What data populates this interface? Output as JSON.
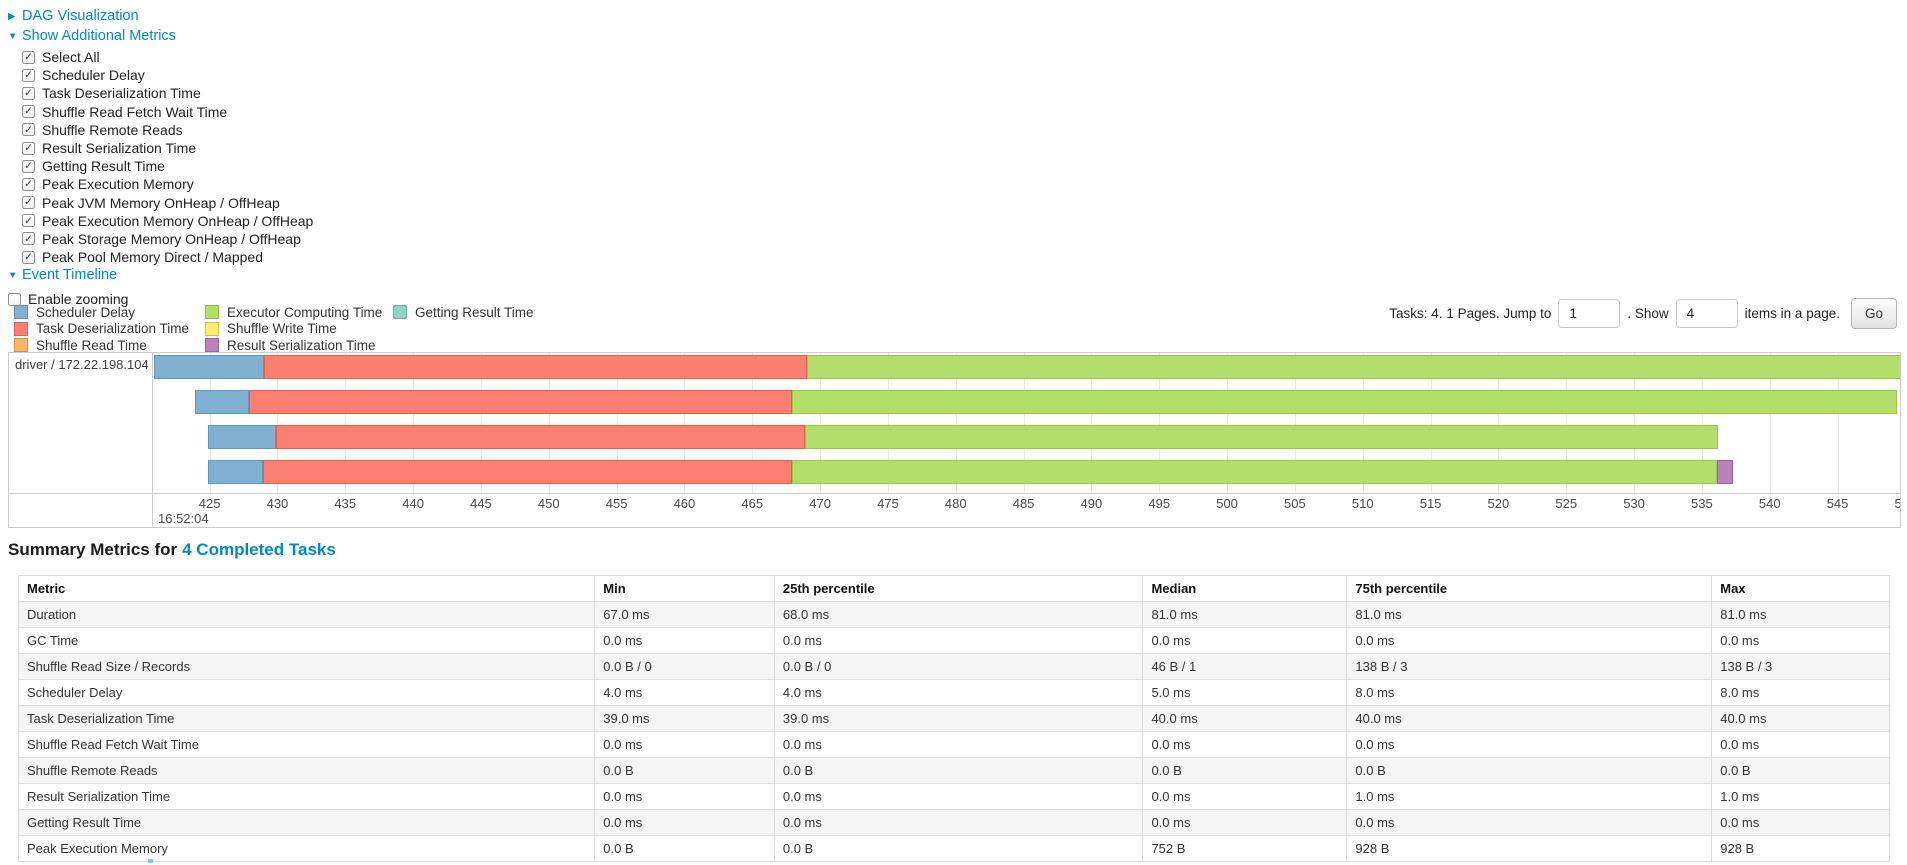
{
  "colors": {
    "link": "#0088cc",
    "grid": "#e9e9e9",
    "table_stripe": "#f5f5f5"
  },
  "controls": {
    "dag_label": "DAG Visualization",
    "metrics_label": "Show Additional Metrics",
    "metrics_checkboxes": [
      {
        "label": "Select All",
        "checked": true
      },
      {
        "label": "Scheduler Delay",
        "checked": true
      },
      {
        "label": "Task Deserialization Time",
        "checked": true
      },
      {
        "label": "Shuffle Read Fetch Wait Time",
        "checked": true
      },
      {
        "label": "Shuffle Remote Reads",
        "checked": true
      },
      {
        "label": "Result Serialization Time",
        "checked": true
      },
      {
        "label": "Getting Result Time",
        "checked": true
      },
      {
        "label": "Peak Execution Memory",
        "checked": true
      },
      {
        "label": "Peak JVM Memory OnHeap / OffHeap",
        "checked": true
      },
      {
        "label": "Peak Execution Memory OnHeap / OffHeap",
        "checked": true
      },
      {
        "label": "Peak Storage Memory OnHeap / OffHeap",
        "checked": true
      },
      {
        "label": "Peak Pool Memory Direct / Mapped",
        "checked": true
      }
    ],
    "event_timeline_label": "Event Timeline",
    "enable_zooming": {
      "label": "Enable zooming",
      "checked": false
    }
  },
  "pagination": {
    "prefix": "Tasks: 4. 1 Pages. Jump to",
    "jump_value": "1",
    "mid": ". Show",
    "show_value": "4",
    "suffix": "items in a page.",
    "go_label": "Go"
  },
  "chart_data": {
    "type": "timeline",
    "title": "Event Timeline",
    "group_label": "driver / 172.22.198.104",
    "x_axis": {
      "min": 420.9,
      "max": 549.75,
      "tick_start": 425,
      "tick_step": 5,
      "tick_end": 550,
      "unit": "ms",
      "second_label": "16:52:04"
    },
    "series": [
      {
        "key": "scheduler_delay",
        "label": "Scheduler Delay",
        "color": "#80B1D3",
        "border": "#5E97C0"
      },
      {
        "key": "task_deserialization",
        "label": "Task Deserialization Time",
        "color": "#FB8072",
        "border": "#E65C4F"
      },
      {
        "key": "shuffle_read",
        "label": "Shuffle Read Time",
        "color": "#FDB462",
        "border": "#EC9B3F"
      },
      {
        "key": "executor_computing",
        "label": "Executor Computing Time",
        "color": "#B3DE69",
        "border": "#97C743"
      },
      {
        "key": "shuffle_write",
        "label": "Shuffle Write Time",
        "color": "#FFED6F",
        "border": "#E8D44F"
      },
      {
        "key": "result_serialization",
        "label": "Result Serialization Time",
        "color": "#BC80BD",
        "border": "#A55CA8"
      },
      {
        "key": "getting_result",
        "label": "Getting Result Time",
        "color": "#8DD3C7",
        "border": "#5FB9A8"
      }
    ],
    "legend_columns": [
      [
        0,
        1,
        2
      ],
      [
        3,
        4,
        5
      ],
      [
        6
      ]
    ],
    "tasks": [
      {
        "segments": [
          {
            "series": "scheduler_delay",
            "start": 420.9,
            "end": 429.0
          },
          {
            "series": "task_deserialization",
            "start": 429.0,
            "end": 469.0
          },
          {
            "series": "executor_computing",
            "start": 469.0,
            "end": 550.2
          }
        ]
      },
      {
        "segments": [
          {
            "series": "scheduler_delay",
            "start": 423.9,
            "end": 427.9
          },
          {
            "series": "task_deserialization",
            "start": 427.9,
            "end": 467.9
          },
          {
            "series": "executor_computing",
            "start": 467.9,
            "end": 549.4
          }
        ]
      },
      {
        "segments": [
          {
            "series": "scheduler_delay",
            "start": 424.9,
            "end": 429.9
          },
          {
            "series": "task_deserialization",
            "start": 429.9,
            "end": 468.9
          },
          {
            "series": "executor_computing",
            "start": 468.9,
            "end": 536.2
          }
        ]
      },
      {
        "segments": [
          {
            "series": "scheduler_delay",
            "start": 424.9,
            "end": 428.9
          },
          {
            "series": "task_deserialization",
            "start": 428.9,
            "end": 467.9
          },
          {
            "series": "executor_computing",
            "start": 467.9,
            "end": 536.1
          },
          {
            "series": "result_serialization",
            "start": 536.1,
            "end": 537.3
          }
        ]
      }
    ]
  },
  "summary": {
    "title_prefix": "Summary Metrics for",
    "title_link": "4 Completed Tasks",
    "table": {
      "headers": [
        "Metric",
        "Min",
        "25th percentile",
        "Median",
        "75th percentile",
        "Max"
      ],
      "col_widths_pct": [
        30.8,
        9.6,
        19.7,
        10.9,
        19.5,
        9.5
      ],
      "rows": [
        [
          "Duration",
          "67.0 ms",
          "68.0 ms",
          "81.0 ms",
          "81.0 ms",
          "81.0 ms"
        ],
        [
          "GC Time",
          "0.0 ms",
          "0.0 ms",
          "0.0 ms",
          "0.0 ms",
          "0.0 ms"
        ],
        [
          "Shuffle Read Size / Records",
          "0.0 B / 0",
          "0.0 B / 0",
          "46 B / 1",
          "138 B / 3",
          "138 B / 3"
        ],
        [
          "Scheduler Delay",
          "4.0 ms",
          "4.0 ms",
          "5.0 ms",
          "8.0 ms",
          "8.0 ms"
        ],
        [
          "Task Deserialization Time",
          "39.0 ms",
          "39.0 ms",
          "40.0 ms",
          "40.0 ms",
          "40.0 ms"
        ],
        [
          "Shuffle Read Fetch Wait Time",
          "0.0 ms",
          "0.0 ms",
          "0.0 ms",
          "0.0 ms",
          "0.0 ms"
        ],
        [
          "Shuffle Remote Reads",
          "0.0 B",
          "0.0 B",
          "0.0 B",
          "0.0 B",
          "0.0 B"
        ],
        [
          "Result Serialization Time",
          "0.0 ms",
          "0.0 ms",
          "0.0 ms",
          "1.0 ms",
          "1.0 ms"
        ],
        [
          "Getting Result Time",
          "0.0 ms",
          "0.0 ms",
          "0.0 ms",
          "0.0 ms",
          "0.0 ms"
        ],
        [
          "Peak Execution Memory",
          "0.0 B",
          "0.0 B",
          "752 B",
          "928 B",
          "928 B"
        ]
      ]
    }
  }
}
